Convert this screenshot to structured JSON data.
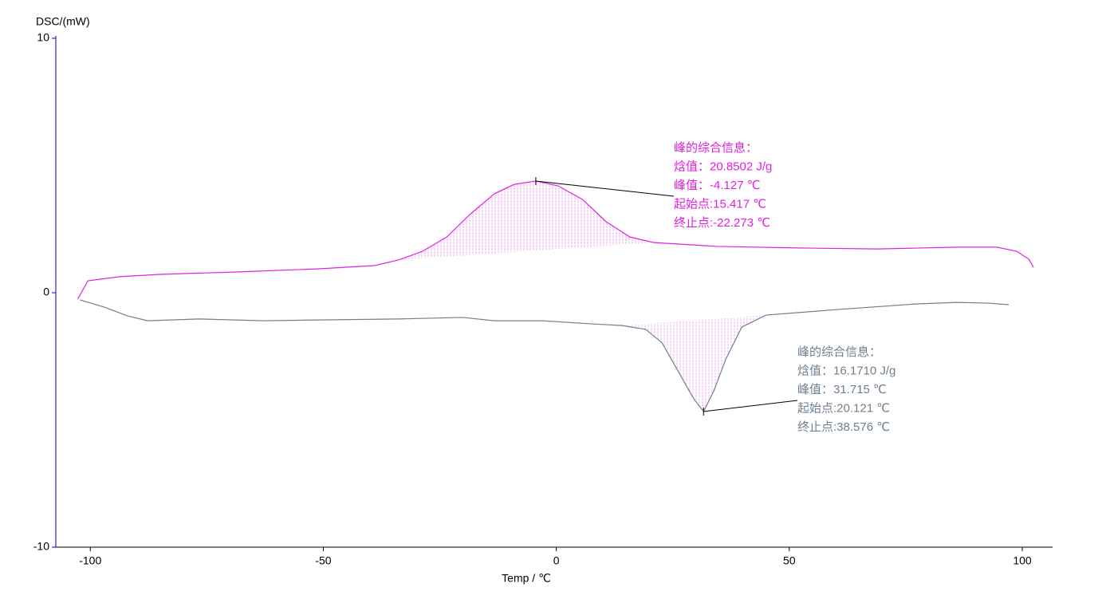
{
  "chart_data": {
    "type": "line",
    "y_label": "DSC/(mW)",
    "x_label": "Temp / ℃",
    "xlim": [
      -107.4,
      106.5
    ],
    "ylim": [
      -10,
      10
    ],
    "xticks": [
      -100,
      -50,
      0,
      50,
      100
    ],
    "yticks": [
      -10,
      0,
      10
    ],
    "series": [
      {
        "color": "#e020e0",
        "x": [
          -102.7,
          -100.5,
          -93.7,
          -85.1,
          -68,
          -50.9,
          -38.9,
          -33.8,
          -28.7,
          -23.5,
          -18.4,
          -13.3,
          -9,
          -4.4,
          0.4,
          5.6,
          10.7,
          15.8,
          21,
          34.6,
          51.8,
          68.9,
          86,
          94.5,
          98.8,
          101.4,
          102.4
        ],
        "values": [
          -0.25,
          0.47,
          0.63,
          0.72,
          0.82,
          0.94,
          1.07,
          1.29,
          1.63,
          2.19,
          3.1,
          3.89,
          4.26,
          4.39,
          4.2,
          3.67,
          2.79,
          2.19,
          1.97,
          1.82,
          1.76,
          1.72,
          1.79,
          1.79,
          1.63,
          1.32,
          1.0
        ]
      },
      {
        "color": "#6e7f8f",
        "x": [
          -102.2,
          -97.1,
          -92,
          -87.7,
          -76.6,
          -62.9,
          -50.9,
          -33.8,
          -20.1,
          -13.3,
          -3,
          7.3,
          14.1,
          19.2,
          22.7,
          26.1,
          29.5,
          31.6,
          33.8,
          36.4,
          39.8,
          45,
          60.3,
          77.4,
          86,
          92.8,
          97.1
        ],
        "values": [
          -0.28,
          -0.56,
          -0.91,
          -1.1,
          -1.03,
          -1.1,
          -1.07,
          -1.03,
          -0.97,
          -1.1,
          -1.1,
          -1.22,
          -1.29,
          -1.44,
          -1.97,
          -3.07,
          -4.17,
          -4.67,
          -3.86,
          -2.6,
          -1.35,
          -0.88,
          -0.66,
          -0.44,
          -0.38,
          -0.41,
          -0.47
        ]
      }
    ],
    "annotations": [
      {
        "color": "#e020e0",
        "lines": [
          "峰的综合信息：",
          "焓值：20.8502 J/g",
          "峰值：-4.127 ℃",
          "起始点:15.417 ℃",
          "终止点:-22.273 ℃"
        ]
      },
      {
        "color": "#6e7f8f",
        "lines": [
          "峰的综合信息：",
          "焓值：16.1710 J/g",
          "峰值：31.715 ℃",
          "起始点:20.121 ℃",
          "终止点:38.576 ℃"
        ]
      }
    ]
  }
}
